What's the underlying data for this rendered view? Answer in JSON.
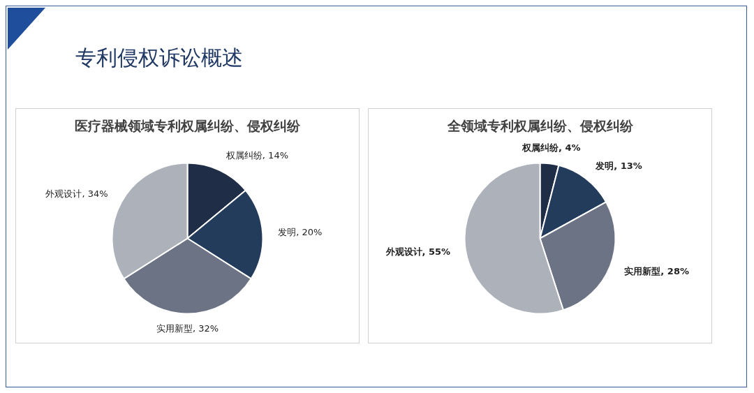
{
  "chart_data": [
    {
      "type": "pie",
      "title": "医疗器械领域专利权属纠纷、侵权纠纷",
      "annotations": [
        "专利侵权诉讼概述"
      ],
      "categories": [
        "权属纠纷",
        "发明",
        "实用新型",
        "外观设计"
      ],
      "values": [
        14,
        20,
        32,
        34
      ],
      "value_labels": [
        "14%",
        "20%",
        "32%",
        "34%"
      ],
      "colors": [
        "#1f2d47",
        "#243c5c",
        "#6b7385",
        "#adb1ba"
      ],
      "legend": false
    },
    {
      "type": "pie",
      "title": "全领域专利权属纠纷、侵权纠纷",
      "categories": [
        "权属纠纷",
        "发明",
        "实用新型",
        "外观设计"
      ],
      "values": [
        4,
        13,
        28,
        55
      ],
      "value_labels": [
        "4%",
        "13%",
        "28%",
        "55%"
      ],
      "colors": [
        "#1f2d47",
        "#243c5c",
        "#6b7385",
        "#adb1ba"
      ],
      "legend": false
    }
  ]
}
